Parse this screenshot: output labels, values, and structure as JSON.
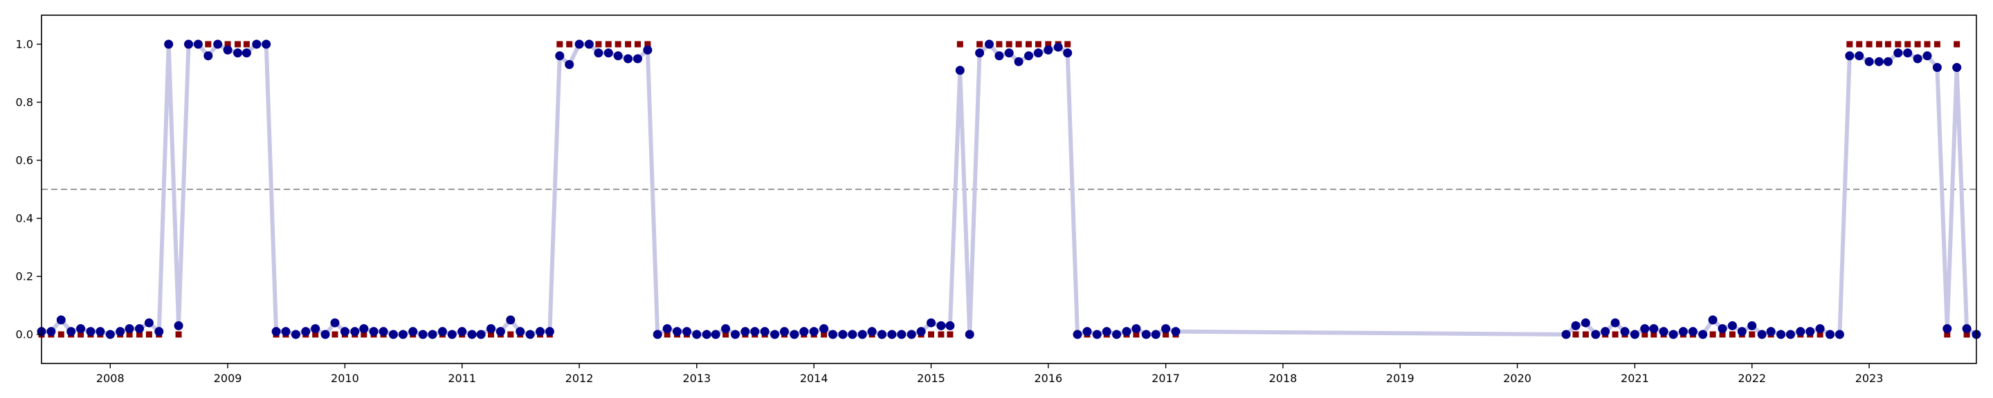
{
  "chart_data": {
    "type": "scatter",
    "title": "",
    "xlabel": "",
    "ylabel": "",
    "xlim": [
      "2007-06-01",
      "2023-12-01"
    ],
    "ylim": [
      -0.1,
      1.1
    ],
    "grid": false,
    "threshold": 0.5,
    "x_ticks": [
      "2008",
      "2009",
      "2010",
      "2011",
      "2012",
      "2013",
      "2014",
      "2015",
      "2016",
      "2017",
      "2018",
      "2019",
      "2020",
      "2021",
      "2022",
      "2023"
    ],
    "y_ticks": [
      "0.0",
      "0.2",
      "0.4",
      "0.6",
      "0.8",
      "1.0"
    ],
    "colors": {
      "line": "#c8c8e6",
      "predicted": "#00008b",
      "actual": "#8b0000",
      "threshold": "#999999"
    },
    "series": [
      {
        "role": "predicted",
        "marker": "circle",
        "x": [
          "2007-06",
          "2007-07",
          "2007-08",
          "2007-09",
          "2007-10",
          "2007-11",
          "2007-12",
          "2008-01",
          "2008-02",
          "2008-03",
          "2008-04",
          "2008-05",
          "2008-06",
          "2008-07",
          "2008-08",
          "2008-09",
          "2008-10",
          "2008-11",
          "2008-12",
          "2009-01",
          "2009-02",
          "2009-03",
          "2009-04",
          "2009-05",
          "2009-06",
          "2009-07",
          "2009-08",
          "2009-09",
          "2009-10",
          "2009-11",
          "2009-12",
          "2010-01",
          "2010-02",
          "2010-03",
          "2010-04",
          "2010-05",
          "2010-06",
          "2010-07",
          "2010-08",
          "2010-09",
          "2010-10",
          "2010-11",
          "2010-12",
          "2011-01",
          "2011-02",
          "2011-03",
          "2011-04",
          "2011-05",
          "2011-06",
          "2011-07",
          "2011-08",
          "2011-09",
          "2011-10",
          "2011-11",
          "2011-12",
          "2012-01",
          "2012-02",
          "2012-03",
          "2012-04",
          "2012-05",
          "2012-06",
          "2012-07",
          "2012-08",
          "2012-09",
          "2012-10",
          "2012-11",
          "2012-12",
          "2013-01",
          "2013-02",
          "2013-03",
          "2013-04",
          "2013-05",
          "2013-06",
          "2013-07",
          "2013-08",
          "2013-09",
          "2013-10",
          "2013-11",
          "2013-12",
          "2014-01",
          "2014-02",
          "2014-03",
          "2014-04",
          "2014-05",
          "2014-06",
          "2014-07",
          "2014-08",
          "2014-09",
          "2014-10",
          "2014-11",
          "2014-12",
          "2015-01",
          "2015-02",
          "2015-03",
          "2015-04",
          "2015-05",
          "2015-06",
          "2015-07",
          "2015-08",
          "2015-09",
          "2015-10",
          "2015-11",
          "2015-12",
          "2016-01",
          "2016-02",
          "2016-03",
          "2016-04",
          "2016-05",
          "2016-06",
          "2016-07",
          "2016-08",
          "2016-09",
          "2016-10",
          "2016-11",
          "2016-12",
          "2017-01",
          "2017-02",
          "2020-06",
          "2020-07",
          "2020-08",
          "2020-09",
          "2020-10",
          "2020-11",
          "2020-12",
          "2021-01",
          "2021-02",
          "2021-03",
          "2021-04",
          "2021-05",
          "2021-06",
          "2021-07",
          "2021-08",
          "2021-09",
          "2021-10",
          "2021-11",
          "2021-12",
          "2022-01",
          "2022-02",
          "2022-03",
          "2022-04",
          "2022-05",
          "2022-06",
          "2022-07",
          "2022-08",
          "2022-09",
          "2022-10",
          "2022-11",
          "2022-12",
          "2023-01",
          "2023-02",
          "2023-03",
          "2023-04",
          "2023-05",
          "2023-06",
          "2023-07",
          "2023-08",
          "2023-09",
          "2023-10",
          "2023-11",
          "2023-12"
        ],
        "y": [
          0.01,
          0.01,
          0.05,
          0.01,
          0.02,
          0.01,
          0.01,
          0.0,
          0.01,
          0.02,
          0.02,
          0.04,
          0.01,
          1.0,
          0.03,
          1.0,
          1.0,
          0.96,
          1.0,
          0.98,
          0.97,
          0.97,
          1.0,
          1.0,
          0.01,
          0.01,
          0.0,
          0.01,
          0.02,
          0.0,
          0.04,
          0.01,
          0.01,
          0.02,
          0.01,
          0.01,
          0.0,
          0.0,
          0.01,
          0.0,
          0.0,
          0.01,
          0.0,
          0.01,
          0.0,
          0.0,
          0.02,
          0.01,
          0.05,
          0.01,
          0.0,
          0.01,
          0.01,
          0.96,
          0.93,
          1.0,
          1.0,
          0.97,
          0.97,
          0.96,
          0.95,
          0.95,
          0.98,
          0.0,
          0.02,
          0.01,
          0.01,
          0.0,
          0.0,
          0.0,
          0.02,
          0.0,
          0.01,
          0.01,
          0.01,
          0.0,
          0.01,
          0.0,
          0.01,
          0.01,
          0.02,
          0.0,
          0.0,
          0.0,
          0.0,
          0.01,
          0.0,
          0.0,
          0.0,
          0.0,
          0.01,
          0.04,
          0.03,
          0.03,
          0.91,
          0.0,
          0.97,
          1.0,
          0.96,
          0.97,
          0.94,
          0.96,
          0.97,
          0.98,
          0.99,
          0.97,
          0.0,
          0.01,
          0.0,
          0.01,
          0.0,
          0.01,
          0.02,
          0.0,
          0.0,
          0.02,
          0.01,
          0.0,
          0.03,
          0.04,
          0.0,
          0.01,
          0.04,
          0.01,
          0.0,
          0.02,
          0.02,
          0.01,
          0.0,
          0.01,
          0.01,
          0.0,
          0.05,
          0.02,
          0.03,
          0.01,
          0.03,
          0.0,
          0.01,
          0.0,
          0.0,
          0.01,
          0.01,
          0.02,
          0.0,
          0.0,
          0.96,
          0.96,
          0.94,
          0.94,
          0.94,
          0.97,
          0.97,
          0.95,
          0.96,
          0.92,
          0.02,
          0.92,
          0.02,
          0.0
        ]
      },
      {
        "role": "actual",
        "marker": "square",
        "x": [
          "2007-06",
          "2007-07",
          "2007-08",
          "2007-09",
          "2007-10",
          "2007-11",
          "2007-12",
          "2008-01",
          "2008-02",
          "2008-03",
          "2008-04",
          "2008-05",
          "2008-06",
          "2008-07",
          "2008-08",
          "2008-09",
          "2008-10",
          "2008-11",
          "2008-12",
          "2009-01",
          "2009-02",
          "2009-03",
          "2009-04",
          "2009-05",
          "2009-06",
          "2009-07",
          "2009-08",
          "2009-09",
          "2009-10",
          "2009-11",
          "2009-12",
          "2010-01",
          "2010-02",
          "2010-03",
          "2010-04",
          "2010-05",
          "2010-06",
          "2010-07",
          "2010-08",
          "2010-09",
          "2010-10",
          "2010-11",
          "2010-12",
          "2011-01",
          "2011-02",
          "2011-03",
          "2011-04",
          "2011-05",
          "2011-06",
          "2011-07",
          "2011-08",
          "2011-09",
          "2011-10",
          "2011-11",
          "2011-12",
          "2012-01",
          "2012-02",
          "2012-03",
          "2012-04",
          "2012-05",
          "2012-06",
          "2012-07",
          "2012-08",
          "2012-09",
          "2012-10",
          "2012-11",
          "2012-12",
          "2013-01",
          "2013-02",
          "2013-03",
          "2013-04",
          "2013-05",
          "2013-06",
          "2013-07",
          "2013-08",
          "2013-09",
          "2013-10",
          "2013-11",
          "2013-12",
          "2014-01",
          "2014-02",
          "2014-03",
          "2014-04",
          "2014-05",
          "2014-06",
          "2014-07",
          "2014-08",
          "2014-09",
          "2014-10",
          "2014-11",
          "2014-12",
          "2015-01",
          "2015-02",
          "2015-03",
          "2015-04",
          "2015-05",
          "2015-06",
          "2015-07",
          "2015-08",
          "2015-09",
          "2015-10",
          "2015-11",
          "2015-12",
          "2016-01",
          "2016-02",
          "2016-03",
          "2016-04",
          "2016-05",
          "2016-06",
          "2016-07",
          "2016-08",
          "2016-09",
          "2016-10",
          "2016-11",
          "2016-12",
          "2017-01",
          "2017-02",
          "2020-06",
          "2020-07",
          "2020-08",
          "2020-09",
          "2020-10",
          "2020-11",
          "2020-12",
          "2021-01",
          "2021-02",
          "2021-03",
          "2021-04",
          "2021-05",
          "2021-06",
          "2021-07",
          "2021-08",
          "2021-09",
          "2021-10",
          "2021-11",
          "2021-12",
          "2022-01",
          "2022-02",
          "2022-03",
          "2022-04",
          "2022-05",
          "2022-06",
          "2022-07",
          "2022-08",
          "2022-09",
          "2022-10",
          "2022-11",
          "2022-12",
          "2023-01",
          "2023-02",
          "2023-03",
          "2023-04",
          "2023-05",
          "2023-06",
          "2023-07",
          "2023-08",
          "2023-09",
          "2023-10",
          "2023-11",
          "2023-12"
        ],
        "y": [
          0,
          0,
          0,
          0,
          0,
          0,
          0,
          0,
          0,
          0,
          0,
          0,
          0,
          1,
          0,
          1,
          1,
          1,
          1,
          1,
          1,
          1,
          1,
          1,
          0,
          0,
          0,
          0,
          0,
          0,
          0,
          0,
          0,
          0,
          0,
          0,
          0,
          0,
          0,
          0,
          0,
          0,
          0,
          0,
          0,
          0,
          0,
          0,
          0,
          0,
          0,
          0,
          0,
          1,
          1,
          1,
          1,
          1,
          1,
          1,
          1,
          1,
          1,
          0,
          0,
          0,
          0,
          0,
          0,
          0,
          0,
          0,
          0,
          0,
          0,
          0,
          0,
          0,
          0,
          0,
          0,
          0,
          0,
          0,
          0,
          0,
          0,
          0,
          0,
          0,
          0,
          0,
          0,
          0,
          1,
          0,
          1,
          1,
          1,
          1,
          1,
          1,
          1,
          1,
          1,
          1,
          0,
          0,
          0,
          0,
          0,
          0,
          0,
          0,
          0,
          0,
          0,
          0,
          0,
          0,
          0,
          0,
          0,
          0,
          0,
          0,
          0,
          0,
          0,
          0,
          0,
          0,
          0,
          0,
          0,
          0,
          0,
          0,
          0,
          0,
          0,
          0,
          0,
          0,
          0,
          0,
          1,
          1,
          1,
          1,
          1,
          1,
          1,
          1,
          1,
          1,
          0,
          1,
          0,
          0
        ]
      }
    ]
  }
}
